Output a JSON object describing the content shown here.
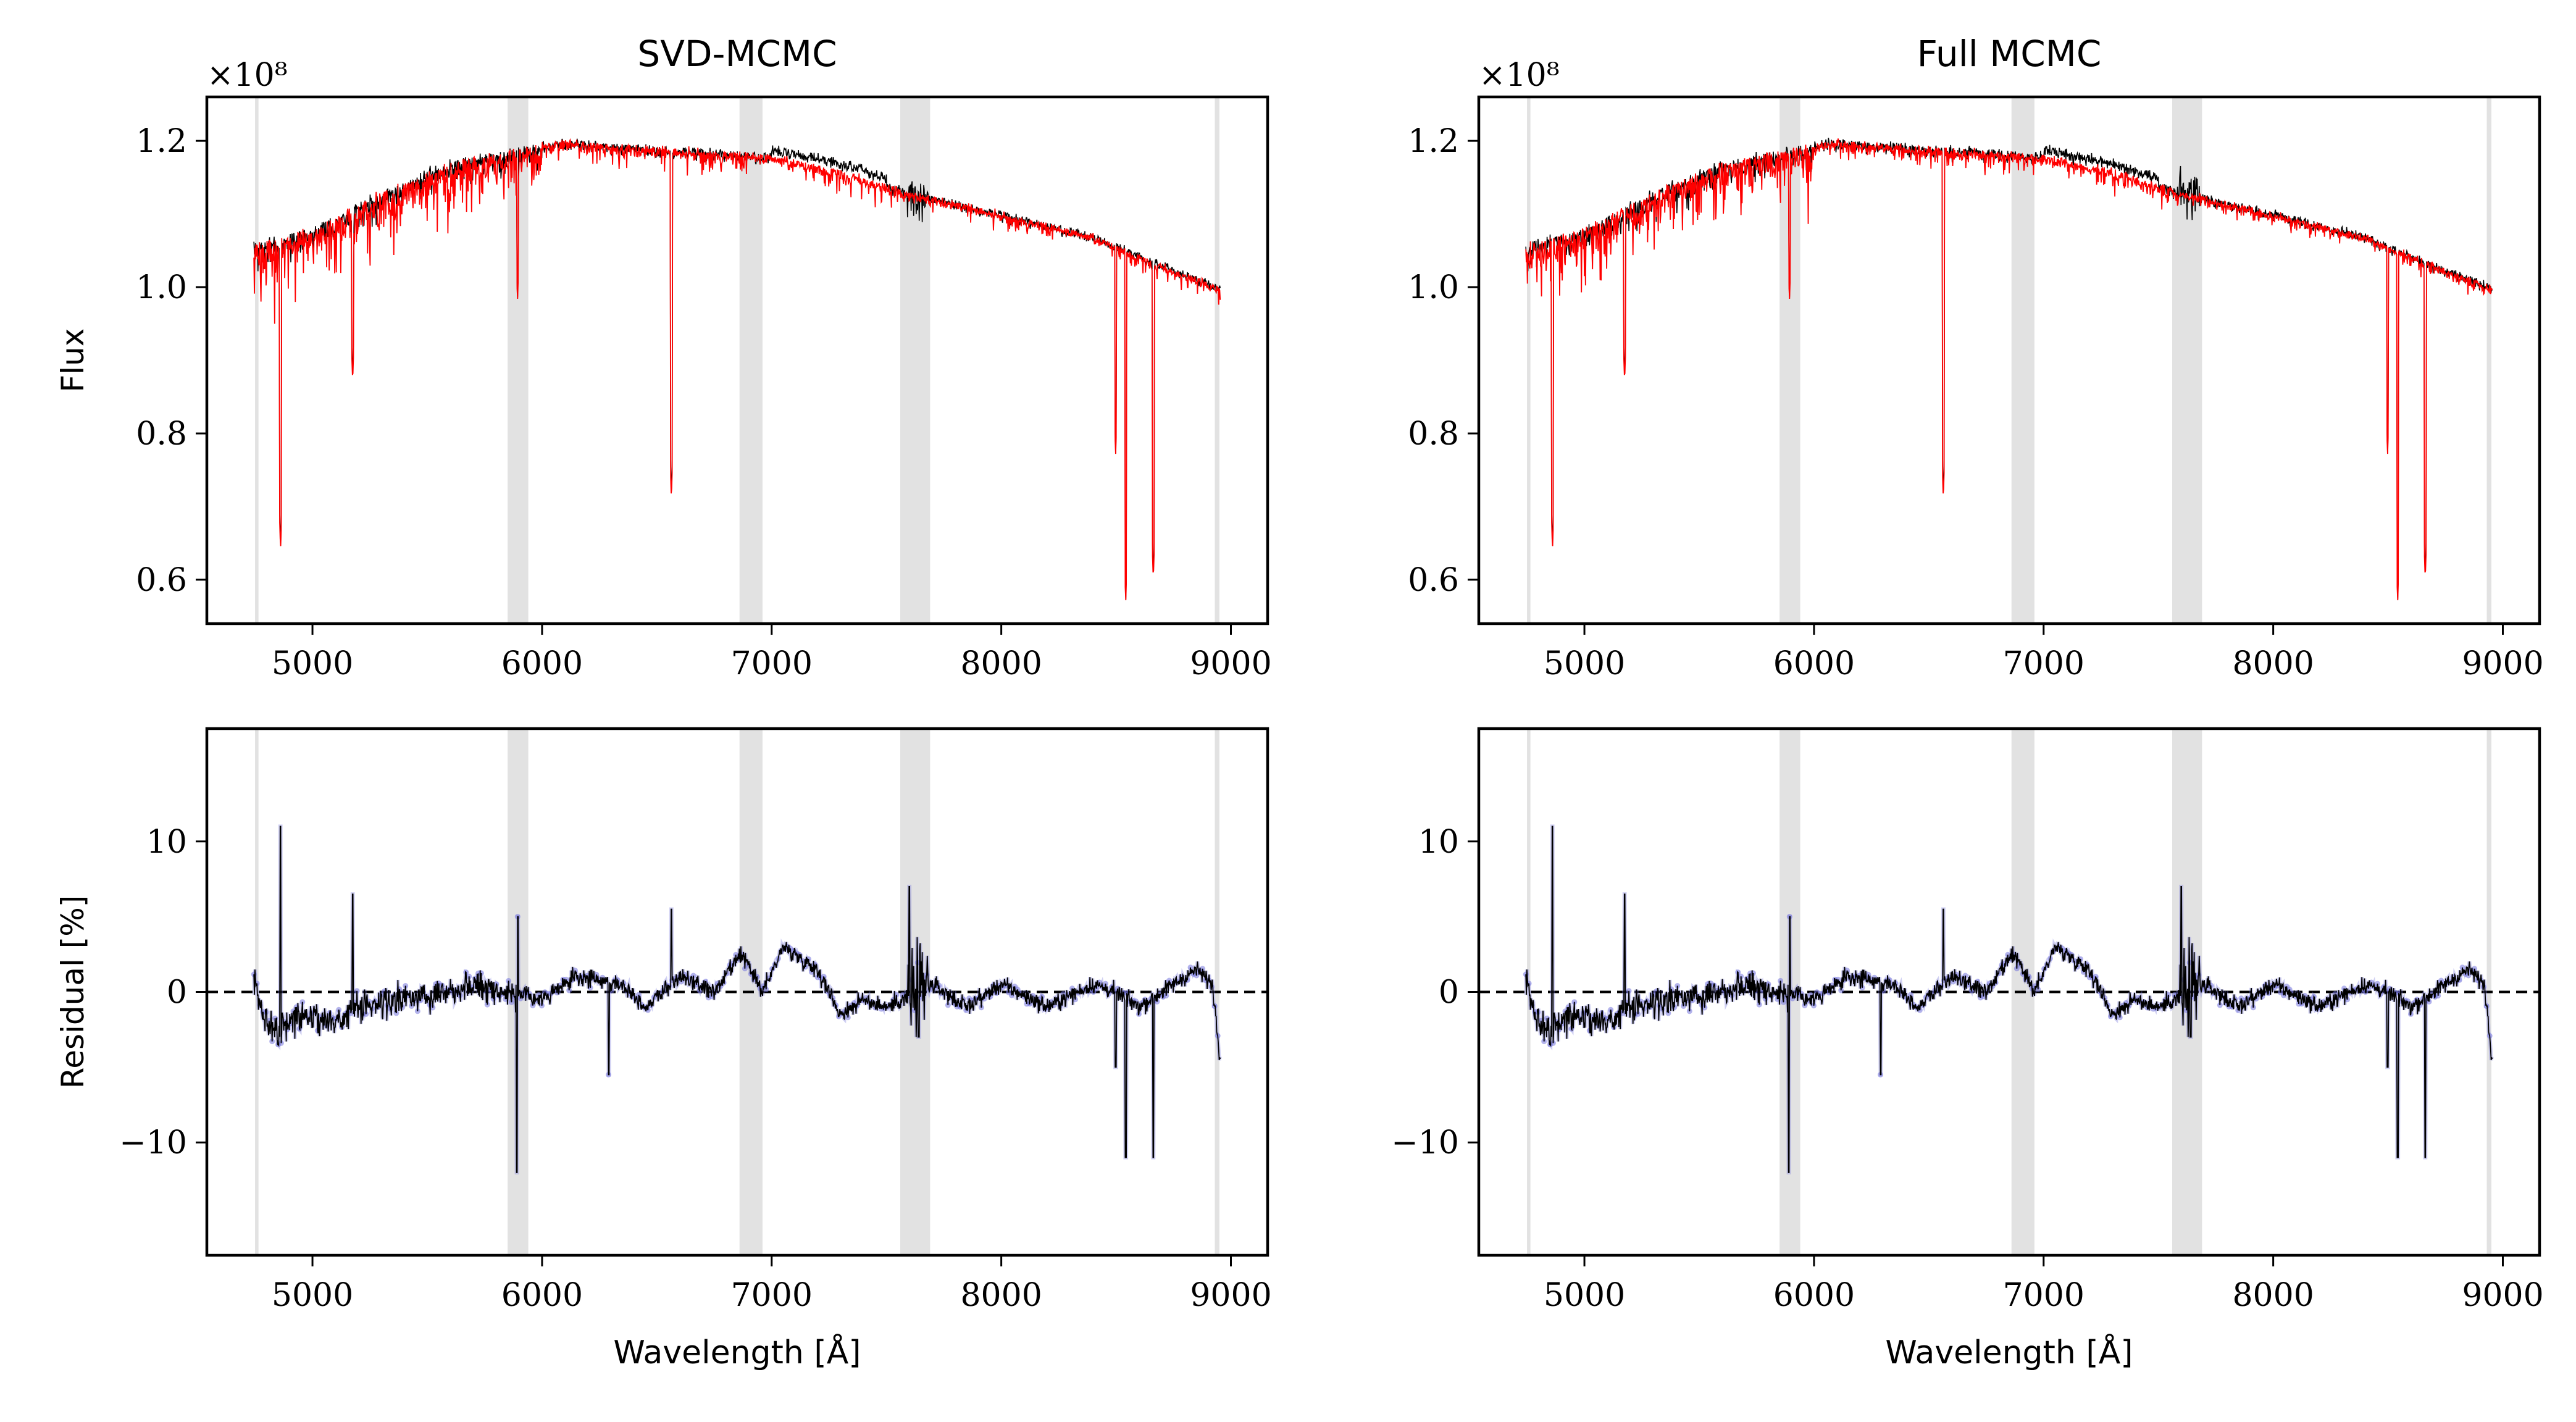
{
  "figure": {
    "titles": [
      "SVD-MCMC",
      "Full MCMC"
    ],
    "xlabel": "Wavelength [Å]",
    "flux_ylabel": "Flux",
    "residual_ylabel": "Residual [%]",
    "offset_text": "×10⁸",
    "colors": {
      "data": "#000000",
      "model": "#ff0000",
      "residual": "#000000",
      "residual_points": "#7777dd",
      "mask": "#e2e2e2",
      "zero_line": "#000000"
    }
  },
  "chart_data": [
    {
      "type": "line",
      "panel": "SVD-MCMC flux",
      "title": "SVD-MCMC",
      "xlabel": "",
      "ylabel": "Flux",
      "offset": "×10⁸",
      "xlim": [
        4540,
        9160
      ],
      "ylim": [
        0.54,
        1.26
      ],
      "xticks": [
        5000,
        6000,
        7000,
        8000,
        9000
      ],
      "yticks": [
        0.6,
        0.8,
        1.0,
        1.2
      ],
      "ytick_labels": [
        "0.6",
        "0.8",
        "1.0",
        "1.2"
      ],
      "masked_regions": [
        [
          4750,
          4765
        ],
        [
          5850,
          5940
        ],
        [
          6860,
          6960
        ],
        [
          7560,
          7690
        ],
        [
          8930,
          8950
        ]
      ],
      "continuum": [
        [
          4750,
          1.06
        ],
        [
          5000,
          1.08
        ],
        [
          5300,
          1.13
        ],
        [
          5600,
          1.17
        ],
        [
          5900,
          1.19
        ],
        [
          6100,
          1.2
        ],
        [
          6500,
          1.19
        ],
        [
          7000,
          1.18
        ],
        [
          7300,
          1.16
        ],
        [
          7600,
          1.13
        ],
        [
          8000,
          1.1
        ],
        [
          8400,
          1.07
        ],
        [
          8700,
          1.03
        ],
        [
          8950,
          1.0
        ]
      ],
      "absorption_lines": [
        [
          4861,
          0.64
        ],
        [
          5175,
          0.87
        ],
        [
          5893,
          0.98
        ],
        [
          6563,
          0.71
        ],
        [
          8498,
          0.77
        ],
        [
          8542,
          0.57
        ],
        [
          8662,
          0.6
        ]
      ],
      "series": [
        {
          "name": "data",
          "color": "#000000"
        },
        {
          "name": "model",
          "color": "#ff0000"
        }
      ]
    },
    {
      "type": "line",
      "panel": "Full MCMC flux",
      "title": "Full MCMC",
      "xlabel": "",
      "ylabel": "",
      "offset": "×10⁸",
      "xlim": [
        4540,
        9160
      ],
      "ylim": [
        0.54,
        1.26
      ],
      "xticks": [
        5000,
        6000,
        7000,
        8000,
        9000
      ],
      "yticks": [
        0.6,
        0.8,
        1.0,
        1.2
      ],
      "ytick_labels": [
        "0.6",
        "0.8",
        "1.0",
        "1.2"
      ],
      "masked_regions": [
        [
          4750,
          4765
        ],
        [
          5850,
          5940
        ],
        [
          6860,
          6960
        ],
        [
          7560,
          7690
        ],
        [
          8930,
          8950
        ]
      ],
      "continuum": [
        [
          4750,
          1.06
        ],
        [
          5000,
          1.08
        ],
        [
          5300,
          1.13
        ],
        [
          5600,
          1.17
        ],
        [
          5900,
          1.19
        ],
        [
          6100,
          1.2
        ],
        [
          6500,
          1.19
        ],
        [
          7000,
          1.18
        ],
        [
          7300,
          1.16
        ],
        [
          7600,
          1.13
        ],
        [
          8000,
          1.1
        ],
        [
          8400,
          1.07
        ],
        [
          8700,
          1.03
        ],
        [
          8950,
          1.0
        ]
      ],
      "absorption_lines": [
        [
          4861,
          0.64
        ],
        [
          5175,
          0.87
        ],
        [
          5893,
          0.98
        ],
        [
          6563,
          0.71
        ],
        [
          8498,
          0.77
        ],
        [
          8542,
          0.57
        ],
        [
          8662,
          0.6
        ]
      ],
      "series": [
        {
          "name": "data",
          "color": "#000000"
        },
        {
          "name": "model",
          "color": "#ff0000"
        }
      ]
    },
    {
      "type": "line",
      "panel": "SVD-MCMC residual",
      "title": "",
      "xlabel": "Wavelength [Å]",
      "ylabel": "Residual [%]",
      "xlim": [
        4540,
        9160
      ],
      "ylim": [
        -17.5,
        17.5
      ],
      "xticks": [
        5000,
        6000,
        7000,
        8000,
        9000
      ],
      "yticks": [
        -10,
        0,
        10
      ],
      "ytick_labels": [
        "−10",
        "0",
        "10"
      ],
      "masked_regions": [
        [
          4750,
          4765
        ],
        [
          5850,
          5940
        ],
        [
          6860,
          6960
        ],
        [
          7560,
          7690
        ],
        [
          8930,
          8950
        ]
      ],
      "baseline": [
        [
          4750,
          0.5
        ],
        [
          4780,
          -1.5
        ],
        [
          4850,
          -2.5
        ],
        [
          4950,
          -1.5
        ],
        [
          5100,
          -2
        ],
        [
          5200,
          -1
        ],
        [
          5400,
          -0.5
        ],
        [
          5700,
          0.5
        ],
        [
          5850,
          0
        ],
        [
          6000,
          -0.5
        ],
        [
          6150,
          1
        ],
        [
          6350,
          0.5
        ],
        [
          6450,
          -1
        ],
        [
          6600,
          1
        ],
        [
          6750,
          0
        ],
        [
          6870,
          2.5
        ],
        [
          6960,
          0
        ],
        [
          7050,
          3
        ],
        [
          7200,
          1.5
        ],
        [
          7300,
          -1.5
        ],
        [
          7400,
          -0.5
        ],
        [
          7500,
          -1
        ],
        [
          7700,
          0.5
        ],
        [
          7850,
          -1
        ],
        [
          8000,
          0.5
        ],
        [
          8200,
          -1
        ],
        [
          8400,
          0.5
        ],
        [
          8500,
          0
        ],
        [
          8600,
          -1
        ],
        [
          8750,
          0.5
        ],
        [
          8850,
          1.5
        ],
        [
          8920,
          0.5
        ],
        [
          8950,
          -4
        ]
      ],
      "spikes": [
        [
          4861,
          11
        ],
        [
          4850,
          -3.5
        ],
        [
          5175,
          6.5
        ],
        [
          5890,
          -12
        ],
        [
          5895,
          5
        ],
        [
          6290,
          -5.5
        ],
        [
          6563,
          5.5
        ],
        [
          7600,
          7
        ],
        [
          7640,
          -3
        ],
        [
          8498,
          -5
        ],
        [
          8542,
          -11
        ],
        [
          8662,
          -11
        ]
      ],
      "reference_line": 0,
      "series": [
        {
          "name": "residual",
          "color": "#000000"
        },
        {
          "name": "residual points",
          "color": "#7777dd"
        }
      ]
    },
    {
      "type": "line",
      "panel": "Full MCMC residual",
      "title": "",
      "xlabel": "Wavelength [Å]",
      "ylabel": "",
      "xlim": [
        4540,
        9160
      ],
      "ylim": [
        -17.5,
        17.5
      ],
      "xticks": [
        5000,
        6000,
        7000,
        8000,
        9000
      ],
      "yticks": [
        -10,
        0,
        10
      ],
      "ytick_labels": [
        "−10",
        "0",
        "10"
      ],
      "masked_regions": [
        [
          4750,
          4765
        ],
        [
          5850,
          5940
        ],
        [
          6860,
          6960
        ],
        [
          7560,
          7690
        ],
        [
          8930,
          8950
        ]
      ],
      "baseline": [
        [
          4750,
          0.5
        ],
        [
          4780,
          -1.5
        ],
        [
          4850,
          -2.5
        ],
        [
          4950,
          -1.5
        ],
        [
          5100,
          -2
        ],
        [
          5200,
          -1
        ],
        [
          5400,
          -0.5
        ],
        [
          5700,
          0.5
        ],
        [
          5850,
          0
        ],
        [
          6000,
          -0.5
        ],
        [
          6150,
          1
        ],
        [
          6350,
          0.5
        ],
        [
          6450,
          -1
        ],
        [
          6600,
          1
        ],
        [
          6750,
          0
        ],
        [
          6870,
          2.5
        ],
        [
          6960,
          0
        ],
        [
          7050,
          3
        ],
        [
          7200,
          1.5
        ],
        [
          7300,
          -1.5
        ],
        [
          7400,
          -0.5
        ],
        [
          7500,
          -1
        ],
        [
          7700,
          0.5
        ],
        [
          7850,
          -1
        ],
        [
          8000,
          0.5
        ],
        [
          8200,
          -1
        ],
        [
          8400,
          0.5
        ],
        [
          8500,
          0
        ],
        [
          8600,
          -1
        ],
        [
          8750,
          0.5
        ],
        [
          8850,
          1.5
        ],
        [
          8920,
          0.5
        ],
        [
          8950,
          -4
        ]
      ],
      "spikes": [
        [
          4861,
          11
        ],
        [
          4850,
          -3.5
        ],
        [
          5175,
          6.5
        ],
        [
          5890,
          -12
        ],
        [
          5895,
          5
        ],
        [
          6290,
          -5.5
        ],
        [
          6563,
          5.5
        ],
        [
          7600,
          7
        ],
        [
          7640,
          -3
        ],
        [
          8498,
          -5
        ],
        [
          8542,
          -11
        ],
        [
          8662,
          -11
        ]
      ],
      "reference_line": 0,
      "series": [
        {
          "name": "residual",
          "color": "#000000"
        },
        {
          "name": "residual points",
          "color": "#7777dd"
        }
      ]
    }
  ]
}
